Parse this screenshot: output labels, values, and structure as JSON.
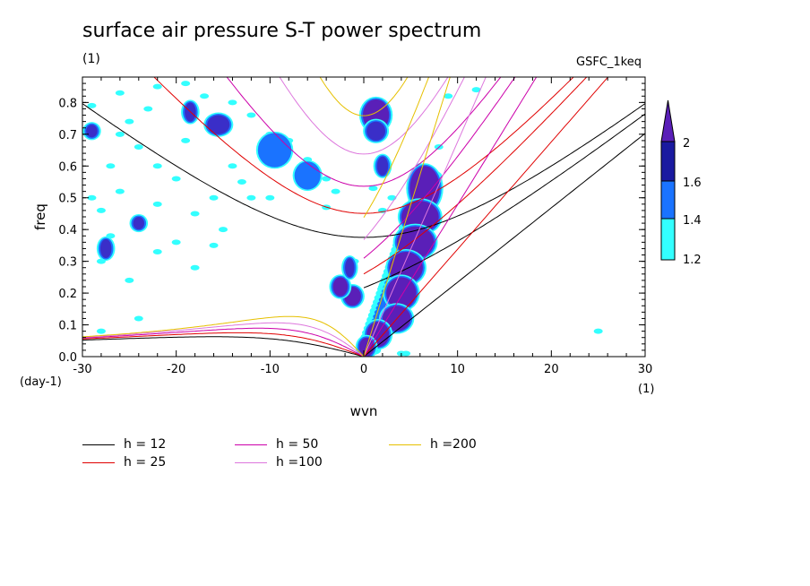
{
  "header": {
    "title": "surface air pressure S-T power spectrum",
    "units_top": "(1)",
    "model": "GSFC_1keq"
  },
  "chart_data": {
    "type": "heatmap",
    "title": "surface air pressure S-T power spectrum",
    "xlabel": "wvn",
    "ylabel": "freq",
    "x_unit_label": "(1)",
    "y_unit_label": "(day-1)",
    "xlim": [
      -30,
      30
    ],
    "ylim": [
      0,
      0.88
    ],
    "x_ticks": [
      "-30",
      "-20",
      "-10",
      "0",
      "10",
      "20",
      "30"
    ],
    "x_tick_values": [
      -30,
      -20,
      -10,
      0,
      10,
      20,
      30
    ],
    "y_ticks": [
      "0.0",
      "0.1",
      "0.2",
      "0.3",
      "0.4",
      "0.5",
      "0.6",
      "0.7",
      "0.8"
    ],
    "y_tick_values": [
      0,
      0.1,
      0.2,
      0.3,
      0.4,
      0.5,
      0.6,
      0.7,
      0.8
    ],
    "colorbar": {
      "levels": [
        1.2,
        1.4,
        1.6,
        2
      ],
      "labels": [
        "1.2",
        "1.4",
        "1.6",
        "2"
      ],
      "colors": [
        "#33ffff",
        "#1a73ff",
        "#1a1aa0",
        "#5a1fb8"
      ]
    },
    "contour_fill_colors": {
      "level_1": "#33ffff",
      "level_2": "#1a73ff",
      "level_3": "#3a2ec8",
      "level_4": "#5a1fb8"
    },
    "blobs": [
      {
        "x": 1.3,
        "y": 0.76,
        "w": 1.4,
        "h": 0.05,
        "level": 4
      },
      {
        "x": 1.3,
        "y": 0.71,
        "w": 1.0,
        "h": 0.03,
        "level": 3
      },
      {
        "x": 2.0,
        "y": 0.6,
        "w": 0.6,
        "h": 0.03,
        "level": 3
      },
      {
        "x": 6.5,
        "y": 0.53,
        "w": 1.6,
        "h": 0.07,
        "level": 4
      },
      {
        "x": 6.0,
        "y": 0.44,
        "w": 2.0,
        "h": 0.05,
        "level": 4
      },
      {
        "x": 5.5,
        "y": 0.36,
        "w": 2.0,
        "h": 0.05,
        "level": 4
      },
      {
        "x": 4.5,
        "y": 0.28,
        "w": 1.8,
        "h": 0.05,
        "level": 4
      },
      {
        "x": 4.0,
        "y": 0.2,
        "w": 1.6,
        "h": 0.05,
        "level": 4
      },
      {
        "x": 3.5,
        "y": 0.12,
        "w": 1.5,
        "h": 0.04,
        "level": 4
      },
      {
        "x": 1.5,
        "y": 0.07,
        "w": 1.2,
        "h": 0.04,
        "level": 4
      },
      {
        "x": 0.3,
        "y": 0.03,
        "w": 0.8,
        "h": 0.03,
        "level": 4
      },
      {
        "x": -1.2,
        "y": 0.19,
        "w": 0.9,
        "h": 0.03,
        "level": 4
      },
      {
        "x": -2.5,
        "y": 0.22,
        "w": 0.8,
        "h": 0.03,
        "level": 4
      },
      {
        "x": -1.5,
        "y": 0.28,
        "w": 0.5,
        "h": 0.03,
        "level": 3
      },
      {
        "x": -18.5,
        "y": 0.77,
        "w": 0.6,
        "h": 0.03,
        "level": 3
      },
      {
        "x": -15.5,
        "y": 0.73,
        "w": 1.2,
        "h": 0.03,
        "level": 3
      },
      {
        "x": -9.5,
        "y": 0.65,
        "w": 1.6,
        "h": 0.05,
        "level": 2
      },
      {
        "x": -6.0,
        "y": 0.57,
        "w": 1.2,
        "h": 0.04,
        "level": 2
      },
      {
        "x": -27.5,
        "y": 0.34,
        "w": 0.6,
        "h": 0.03,
        "level": 3
      },
      {
        "x": -29.0,
        "y": 0.71,
        "w": 0.6,
        "h": 0.02,
        "level": 3
      },
      {
        "x": -24.0,
        "y": 0.42,
        "w": 0.6,
        "h": 0.02,
        "level": 3
      }
    ],
    "speckles_cyan": [
      [
        -29,
        0.79
      ],
      [
        -26,
        0.83
      ],
      [
        -22,
        0.85
      ],
      [
        -19,
        0.86
      ],
      [
        -17,
        0.82
      ],
      [
        -14,
        0.8
      ],
      [
        -12,
        0.76
      ],
      [
        -10,
        0.7
      ],
      [
        -8,
        0.68
      ],
      [
        -6,
        0.62
      ],
      [
        -4,
        0.56
      ],
      [
        -3,
        0.52
      ],
      [
        2,
        0.46
      ],
      [
        -29,
        0.5
      ],
      [
        -28,
        0.46
      ],
      [
        -27,
        0.38
      ],
      [
        -28,
        0.3
      ],
      [
        -25,
        0.24
      ],
      [
        -22,
        0.33
      ],
      [
        -20,
        0.36
      ],
      [
        -18,
        0.45
      ],
      [
        -15,
        0.4
      ],
      [
        -16,
        0.35
      ],
      [
        -24,
        0.12
      ],
      [
        -28,
        0.08
      ],
      [
        -10,
        0.5
      ],
      [
        -4,
        0.47
      ],
      [
        -1,
        0.3
      ],
      [
        1,
        0.53
      ],
      [
        3,
        0.5
      ],
      [
        4,
        0.38
      ],
      [
        3,
        0.3
      ],
      [
        2,
        0.22
      ],
      [
        6,
        0.6
      ],
      [
        8,
        0.66
      ],
      [
        9,
        0.82
      ],
      [
        12,
        0.84
      ],
      [
        4,
        0.01
      ],
      [
        4.5,
        0.01
      ],
      [
        25,
        0.08
      ],
      [
        -26,
        0.7
      ],
      [
        -24,
        0.66
      ],
      [
        -22,
        0.6
      ],
      [
        -20,
        0.56
      ],
      [
        -26,
        0.52
      ],
      [
        -14,
        0.6
      ],
      [
        -13,
        0.55
      ],
      [
        -23,
        0.78
      ],
      [
        -25,
        0.74
      ],
      [
        -19,
        0.68
      ],
      [
        -12,
        0.5
      ],
      [
        -16,
        0.5
      ],
      [
        -18,
        0.28
      ],
      [
        -22,
        0.48
      ],
      [
        -27,
        0.6
      ]
    ],
    "dispersion_curves": [
      {
        "name": "h = 12",
        "color": "#000000"
      },
      {
        "name": "h = 25",
        "color": "#e00000"
      },
      {
        "name": "h = 50",
        "color": "#cc00aa"
      },
      {
        "name": "h =100",
        "color": "#dd77dd"
      },
      {
        "name": "h =200",
        "color": "#e6c000"
      }
    ]
  },
  "legend": {
    "items": [
      {
        "label": "h = 12",
        "color": "#000000"
      },
      {
        "label": "h = 25",
        "color": "#e00000"
      },
      {
        "label": "h = 50",
        "color": "#cc00aa"
      },
      {
        "label": "h =100",
        "color": "#dd77dd"
      },
      {
        "label": "h =200",
        "color": "#e6c000"
      }
    ]
  }
}
